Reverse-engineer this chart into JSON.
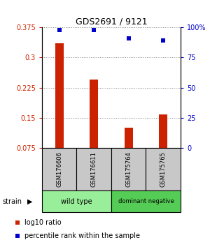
{
  "title": "GDS2691 / 9121",
  "samples": [
    "GSM176606",
    "GSM176611",
    "GSM175764",
    "GSM175765"
  ],
  "log10_ratio": [
    0.335,
    0.245,
    0.125,
    0.158
  ],
  "percentile_rank": [
    97.5,
    97.5,
    91,
    89
  ],
  "ylim_left": [
    0.075,
    0.375
  ],
  "ylim_right": [
    0,
    100
  ],
  "yticks_left": [
    0.075,
    0.15,
    0.225,
    0.3,
    0.375
  ],
  "yticks_right": [
    0,
    25,
    50,
    75,
    100
  ],
  "ytick_labels_left": [
    "0.075",
    "0.15",
    "0.225",
    "0.3",
    "0.375"
  ],
  "ytick_labels_right": [
    "0",
    "25",
    "50",
    "75",
    "100%"
  ],
  "bar_color": "#cc2200",
  "dot_color": "#0000cc",
  "groups": [
    {
      "label": "wild type",
      "samples": [
        0,
        1
      ],
      "color": "#99ee99"
    },
    {
      "label": "dominant negative",
      "samples": [
        2,
        3
      ],
      "color": "#55cc55"
    }
  ],
  "gray_box_color": "#c8c8c8",
  "strain_label": "strain",
  "legend": [
    {
      "color": "#cc2200",
      "label": "log10 ratio"
    },
    {
      "color": "#0000cc",
      "label": "percentile rank within the sample"
    }
  ],
  "dotted_line_color": "#888888",
  "bar_width": 0.25,
  "fig_width": 3.0,
  "fig_height": 3.54
}
